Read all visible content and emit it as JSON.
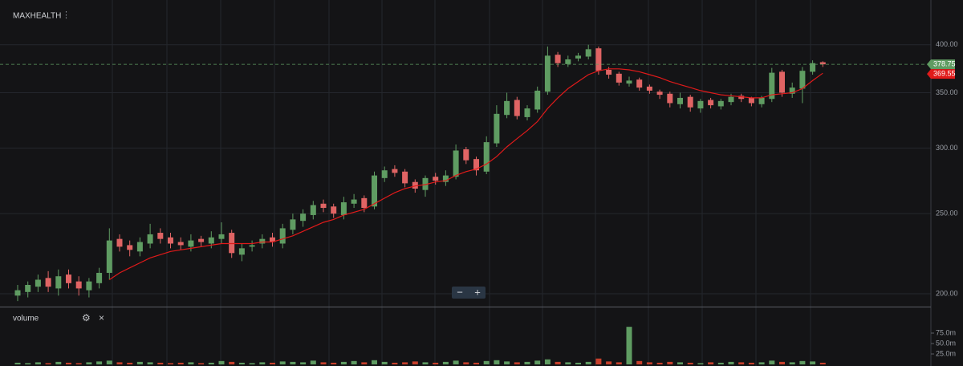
{
  "chart_data": [
    {
      "type": "candlestick",
      "title": "MAXHEALTH",
      "log_scale": true,
      "grid": true,
      "up_color": "#5f9c62",
      "down_color": "#e06464",
      "open": [
        199,
        201,
        204,
        209,
        203,
        211,
        207,
        202,
        206,
        212,
        233,
        229,
        225,
        230,
        237,
        234,
        231,
        228,
        233,
        230,
        233,
        237,
        223,
        228,
        230,
        234,
        230,
        239,
        245,
        249,
        257,
        255,
        249,
        257,
        261,
        255,
        276,
        283,
        281,
        273,
        267,
        277,
        273,
        277,
        299,
        291,
        281,
        304,
        329,
        343,
        327,
        334,
        351,
        389,
        379,
        385,
        387,
        396,
        373,
        369,
        359,
        363,
        356,
        351,
        349,
        339,
        346,
        335,
        343,
        337,
        341,
        347,
        345,
        339,
        344,
        371,
        349,
        354,
        371,
        381
      ],
      "high": [
        205,
        207,
        211,
        213,
        214,
        214,
        210,
        209,
        215,
        240,
        236,
        232,
        234,
        243,
        240,
        237,
        234,
        236,
        235,
        238,
        244,
        239,
        230,
        232,
        236,
        237,
        243,
        250,
        253,
        259,
        260,
        257,
        262,
        264,
        263,
        281,
        285,
        286,
        283,
        275,
        278,
        280,
        282,
        303,
        301,
        293,
        310,
        338,
        350,
        346,
        338,
        356,
        398,
        392,
        388,
        391,
        400,
        398,
        376,
        371,
        366,
        365,
        358,
        353,
        351,
        350,
        348,
        344,
        345,
        344,
        349,
        349,
        346,
        347,
        375,
        373,
        360,
        376,
        383,
        382
      ],
      "low": [
        196,
        198,
        201,
        201,
        199,
        203,
        199,
        198,
        203,
        208,
        225,
        222,
        222,
        227,
        230,
        227,
        226,
        225,
        228,
        227,
        230,
        221,
        219,
        225,
        227,
        228,
        227,
        236,
        241,
        246,
        251,
        247,
        246,
        254,
        251,
        253,
        273,
        277,
        269,
        265,
        262,
        271,
        270,
        275,
        287,
        278,
        279,
        301,
        326,
        325,
        324,
        331,
        348,
        376,
        376,
        382,
        384,
        368,
        364,
        357,
        356,
        352,
        349,
        344,
        336,
        335,
        332,
        331,
        335,
        334,
        338,
        341,
        337,
        336,
        341,
        346,
        345,
        340,
        368,
        376
      ],
      "close": [
        202,
        205,
        208,
        204,
        210,
        206,
        203,
        207,
        212,
        232,
        228,
        226,
        231,
        236,
        233,
        230,
        229,
        232,
        231,
        234,
        236,
        224,
        227,
        229,
        233,
        231,
        240,
        246,
        250,
        256,
        254,
        250,
        258,
        260,
        254,
        278,
        282,
        280,
        272,
        268,
        276,
        274,
        278,
        298,
        290,
        282,
        305,
        330,
        342,
        328,
        335,
        352,
        388,
        380,
        384,
        388,
        395,
        372,
        368,
        360,
        362,
        355,
        352,
        348,
        340,
        345,
        336,
        342,
        338,
        342,
        346,
        344,
        340,
        345,
        370,
        350,
        355,
        372,
        380,
        378.75
      ],
      "ma": {
        "color": "#e01a1a",
        "values": [
          null,
          null,
          null,
          null,
          null,
          null,
          null,
          null,
          null,
          208,
          212,
          215,
          218,
          221,
          223,
          225,
          226,
          227,
          228,
          229,
          230,
          230,
          230,
          230,
          231,
          231,
          233,
          235,
          238,
          241,
          244,
          246,
          249,
          251,
          253,
          257,
          261,
          265,
          268,
          270,
          271,
          273,
          274,
          278,
          281,
          283,
          287,
          293,
          301,
          308,
          315,
          323,
          335,
          345,
          354,
          361,
          368,
          372,
          374,
          374,
          373,
          371,
          368,
          365,
          361,
          358,
          355,
          352,
          350,
          348,
          347,
          346,
          345,
          345,
          348,
          349,
          350,
          354,
          362,
          369.55
        ]
      },
      "ylim": [
        193,
        453
      ],
      "yticks": [
        {
          "value": 200,
          "label": "200.00"
        },
        {
          "value": 250,
          "label": "250.00"
        },
        {
          "value": 300,
          "label": "300.00"
        },
        {
          "value": 350,
          "label": "350.00"
        },
        {
          "value": 400,
          "label": "400.00"
        }
      ]
    },
    {
      "type": "bar",
      "title": "volume",
      "values": [
        4000000,
        3000000,
        5000000,
        3000000,
        6000000,
        4000000,
        3000000,
        5000000,
        7000000,
        9000000,
        5000000,
        4000000,
        6000000,
        5000000,
        4000000,
        3000000,
        4000000,
        5000000,
        3000000,
        4000000,
        8000000,
        6000000,
        4000000,
        3000000,
        5000000,
        4000000,
        7000000,
        6000000,
        5000000,
        9000000,
        5000000,
        4000000,
        6000000,
        8000000,
        5000000,
        10000000,
        6000000,
        4000000,
        5000000,
        7000000,
        5000000,
        4000000,
        6000000,
        9000000,
        5000000,
        4000000,
        8000000,
        10000000,
        7000000,
        5000000,
        6000000,
        9000000,
        12000000,
        6000000,
        5000000,
        4000000,
        6000000,
        14000000,
        7000000,
        5000000,
        90000000,
        8000000,
        5000000,
        4000000,
        6000000,
        5000000,
        4000000,
        3000000,
        5000000,
        4000000,
        6000000,
        5000000,
        4000000,
        5000000,
        9000000,
        6000000,
        5000000,
        8000000,
        7000000,
        4000000
      ],
      "ylim": [
        0,
        136500000
      ],
      "yticks": [
        {
          "value": 25000000,
          "label": "25.0m"
        },
        {
          "value": 50000000,
          "label": "50.0m"
        },
        {
          "value": 75000000,
          "label": "75.0m"
        }
      ]
    }
  ],
  "toolbar": {
    "zoom_out": "−",
    "zoom_in": "+"
  }
}
